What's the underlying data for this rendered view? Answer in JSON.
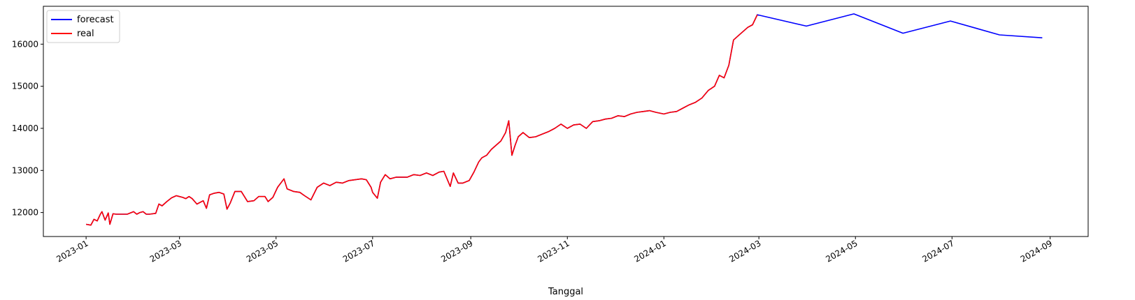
{
  "chart_data": {
    "type": "line",
    "title": "",
    "xlabel": "Tanggal",
    "ylabel": "",
    "grid": false,
    "legend_placement": "top-left",
    "xlim": [
      "2022-12-05",
      "2024-09-25"
    ],
    "ylim": [
      11430,
      16900
    ],
    "x_ticks": [
      "2023-01-01",
      "2023-03-01",
      "2023-05-01",
      "2023-07-01",
      "2023-09-01",
      "2023-11-01",
      "2024-01-01",
      "2024-03-01",
      "2024-05-01",
      "2024-07-01",
      "2024-09-01"
    ],
    "y_ticks": [
      12000,
      13000,
      14000,
      15000,
      16000
    ],
    "series": [
      {
        "name": "forecast",
        "color": "#0000ff",
        "points": [
          [
            "2023-01-01",
            11720
          ],
          [
            "2023-01-04",
            11700
          ],
          [
            "2023-01-06",
            11840
          ],
          [
            "2023-01-08",
            11800
          ],
          [
            "2023-01-10",
            11960
          ],
          [
            "2023-01-11",
            12020
          ],
          [
            "2023-01-13",
            11820
          ],
          [
            "2023-01-15",
            11990
          ],
          [
            "2023-01-16",
            11720
          ],
          [
            "2023-01-18",
            11970
          ],
          [
            "2023-01-20",
            11960
          ],
          [
            "2023-01-23",
            11960
          ],
          [
            "2023-01-27",
            11960
          ],
          [
            "2023-01-31",
            12020
          ],
          [
            "2023-02-02",
            11960
          ],
          [
            "2023-02-04",
            12000
          ],
          [
            "2023-02-06",
            12020
          ],
          [
            "2023-02-08",
            11960
          ],
          [
            "2023-02-10",
            11960
          ],
          [
            "2023-02-14",
            11980
          ],
          [
            "2023-02-16",
            12200
          ],
          [
            "2023-02-18",
            12160
          ],
          [
            "2023-02-21",
            12260
          ],
          [
            "2023-02-24",
            12350
          ],
          [
            "2023-02-27",
            12400
          ],
          [
            "2023-03-03",
            12360
          ],
          [
            "2023-03-05",
            12330
          ],
          [
            "2023-03-07",
            12380
          ],
          [
            "2023-03-09",
            12330
          ],
          [
            "2023-03-12",
            12200
          ],
          [
            "2023-03-16",
            12280
          ],
          [
            "2023-03-18",
            12100
          ],
          [
            "2023-03-20",
            12420
          ],
          [
            "2023-03-23",
            12460
          ],
          [
            "2023-03-26",
            12480
          ],
          [
            "2023-03-29",
            12440
          ],
          [
            "2023-03-31",
            12080
          ],
          [
            "2023-04-02",
            12220
          ],
          [
            "2023-04-05",
            12500
          ],
          [
            "2023-04-09",
            12500
          ],
          [
            "2023-04-13",
            12260
          ],
          [
            "2023-04-17",
            12280
          ],
          [
            "2023-04-20",
            12380
          ],
          [
            "2023-04-24",
            12380
          ],
          [
            "2023-04-26",
            12260
          ],
          [
            "2023-04-29",
            12360
          ],
          [
            "2023-05-02",
            12600
          ],
          [
            "2023-05-06",
            12800
          ],
          [
            "2023-05-08",
            12560
          ],
          [
            "2023-05-12",
            12500
          ],
          [
            "2023-05-16",
            12480
          ],
          [
            "2023-05-19",
            12400
          ],
          [
            "2023-05-23",
            12300
          ],
          [
            "2023-05-27",
            12600
          ],
          [
            "2023-05-31",
            12700
          ],
          [
            "2023-06-04",
            12640
          ],
          [
            "2023-06-08",
            12720
          ],
          [
            "2023-06-12",
            12700
          ],
          [
            "2023-06-16",
            12760
          ],
          [
            "2023-06-20",
            12780
          ],
          [
            "2023-06-24",
            12800
          ],
          [
            "2023-06-27",
            12780
          ],
          [
            "2023-06-30",
            12600
          ],
          [
            "2023-07-01",
            12480
          ],
          [
            "2023-07-04",
            12340
          ],
          [
            "2023-07-06",
            12720
          ],
          [
            "2023-07-09",
            12900
          ],
          [
            "2023-07-12",
            12800
          ],
          [
            "2023-07-16",
            12840
          ],
          [
            "2023-07-20",
            12840
          ],
          [
            "2023-07-23",
            12840
          ],
          [
            "2023-07-27",
            12900
          ],
          [
            "2023-07-31",
            12880
          ],
          [
            "2023-08-04",
            12940
          ],
          [
            "2023-08-08",
            12880
          ],
          [
            "2023-08-12",
            12960
          ],
          [
            "2023-08-15",
            12980
          ],
          [
            "2023-08-19",
            12620
          ],
          [
            "2023-08-21",
            12940
          ],
          [
            "2023-08-24",
            12700
          ],
          [
            "2023-08-27",
            12700
          ],
          [
            "2023-08-31",
            12760
          ],
          [
            "2023-09-03",
            12960
          ],
          [
            "2023-09-06",
            13200
          ],
          [
            "2023-09-08",
            13300
          ],
          [
            "2023-09-11",
            13360
          ],
          [
            "2023-09-14",
            13500
          ],
          [
            "2023-09-17",
            13600
          ],
          [
            "2023-09-20",
            13700
          ],
          [
            "2023-09-23",
            13900
          ],
          [
            "2023-09-25",
            14180
          ],
          [
            "2023-09-27",
            13360
          ],
          [
            "2023-09-29",
            13600
          ],
          [
            "2023-10-01",
            13800
          ],
          [
            "2023-10-04",
            13900
          ],
          [
            "2023-10-08",
            13780
          ],
          [
            "2023-10-12",
            13800
          ],
          [
            "2023-10-16",
            13860
          ],
          [
            "2023-10-20",
            13920
          ],
          [
            "2023-10-24",
            14000
          ],
          [
            "2023-10-28",
            14100
          ],
          [
            "2023-11-01",
            14000
          ],
          [
            "2023-11-05",
            14080
          ],
          [
            "2023-11-09",
            14100
          ],
          [
            "2023-11-13",
            14000
          ],
          [
            "2023-11-17",
            14160
          ],
          [
            "2023-11-21",
            14180
          ],
          [
            "2023-11-25",
            14220
          ],
          [
            "2023-11-29",
            14240
          ],
          [
            "2023-12-03",
            14300
          ],
          [
            "2023-12-07",
            14280
          ],
          [
            "2023-12-11",
            14340
          ],
          [
            "2023-12-15",
            14380
          ],
          [
            "2023-12-19",
            14400
          ],
          [
            "2023-12-23",
            14420
          ],
          [
            "2023-12-27",
            14380
          ],
          [
            "2024-01-01",
            14340
          ],
          [
            "2024-01-05",
            14380
          ],
          [
            "2024-01-09",
            14400
          ],
          [
            "2024-01-13",
            14480
          ],
          [
            "2024-01-17",
            14560
          ],
          [
            "2024-01-21",
            14620
          ],
          [
            "2024-01-25",
            14720
          ],
          [
            "2024-01-29",
            14900
          ],
          [
            "2024-02-02",
            15000
          ],
          [
            "2024-02-05",
            15260
          ],
          [
            "2024-02-08",
            15200
          ],
          [
            "2024-02-11",
            15500
          ],
          [
            "2024-02-14",
            16100
          ],
          [
            "2024-02-17",
            16200
          ],
          [
            "2024-02-20",
            16300
          ],
          [
            "2024-02-23",
            16400
          ],
          [
            "2024-02-26",
            16460
          ],
          [
            "2024-02-29",
            16700
          ],
          [
            "2024-03-31",
            16430
          ],
          [
            "2024-04-30",
            16720
          ],
          [
            "2024-05-31",
            16260
          ],
          [
            "2024-06-30",
            16550
          ],
          [
            "2024-07-31",
            16220
          ],
          [
            "2024-08-27",
            16150
          ]
        ]
      },
      {
        "name": "real",
        "color": "#ff0000",
        "points": [
          [
            "2023-01-01",
            11720
          ],
          [
            "2023-01-04",
            11700
          ],
          [
            "2023-01-06",
            11840
          ],
          [
            "2023-01-08",
            11800
          ],
          [
            "2023-01-10",
            11960
          ],
          [
            "2023-01-11",
            12020
          ],
          [
            "2023-01-13",
            11820
          ],
          [
            "2023-01-15",
            11990
          ],
          [
            "2023-01-16",
            11720
          ],
          [
            "2023-01-18",
            11970
          ],
          [
            "2023-01-20",
            11960
          ],
          [
            "2023-01-23",
            11960
          ],
          [
            "2023-01-27",
            11960
          ],
          [
            "2023-01-31",
            12020
          ],
          [
            "2023-02-02",
            11960
          ],
          [
            "2023-02-04",
            12000
          ],
          [
            "2023-02-06",
            12020
          ],
          [
            "2023-02-08",
            11960
          ],
          [
            "2023-02-10",
            11960
          ],
          [
            "2023-02-14",
            11980
          ],
          [
            "2023-02-16",
            12200
          ],
          [
            "2023-02-18",
            12160
          ],
          [
            "2023-02-21",
            12260
          ],
          [
            "2023-02-24",
            12350
          ],
          [
            "2023-02-27",
            12400
          ],
          [
            "2023-03-03",
            12360
          ],
          [
            "2023-03-05",
            12330
          ],
          [
            "2023-03-07",
            12380
          ],
          [
            "2023-03-09",
            12330
          ],
          [
            "2023-03-12",
            12200
          ],
          [
            "2023-03-16",
            12280
          ],
          [
            "2023-03-18",
            12100
          ],
          [
            "2023-03-20",
            12420
          ],
          [
            "2023-03-23",
            12460
          ],
          [
            "2023-03-26",
            12480
          ],
          [
            "2023-03-29",
            12440
          ],
          [
            "2023-03-31",
            12080
          ],
          [
            "2023-04-02",
            12220
          ],
          [
            "2023-04-05",
            12500
          ],
          [
            "2023-04-09",
            12500
          ],
          [
            "2023-04-13",
            12260
          ],
          [
            "2023-04-17",
            12280
          ],
          [
            "2023-04-20",
            12380
          ],
          [
            "2023-04-24",
            12380
          ],
          [
            "2023-04-26",
            12260
          ],
          [
            "2023-04-29",
            12360
          ],
          [
            "2023-05-02",
            12600
          ],
          [
            "2023-05-06",
            12800
          ],
          [
            "2023-05-08",
            12560
          ],
          [
            "2023-05-12",
            12500
          ],
          [
            "2023-05-16",
            12480
          ],
          [
            "2023-05-19",
            12400
          ],
          [
            "2023-05-23",
            12300
          ],
          [
            "2023-05-27",
            12600
          ],
          [
            "2023-05-31",
            12700
          ],
          [
            "2023-06-04",
            12640
          ],
          [
            "2023-06-08",
            12720
          ],
          [
            "2023-06-12",
            12700
          ],
          [
            "2023-06-16",
            12760
          ],
          [
            "2023-06-20",
            12780
          ],
          [
            "2023-06-24",
            12800
          ],
          [
            "2023-06-27",
            12780
          ],
          [
            "2023-06-30",
            12600
          ],
          [
            "2023-07-01",
            12480
          ],
          [
            "2023-07-04",
            12340
          ],
          [
            "2023-07-06",
            12720
          ],
          [
            "2023-07-09",
            12900
          ],
          [
            "2023-07-12",
            12800
          ],
          [
            "2023-07-16",
            12840
          ],
          [
            "2023-07-20",
            12840
          ],
          [
            "2023-07-23",
            12840
          ],
          [
            "2023-07-27",
            12900
          ],
          [
            "2023-07-31",
            12880
          ],
          [
            "2023-08-04",
            12940
          ],
          [
            "2023-08-08",
            12880
          ],
          [
            "2023-08-12",
            12960
          ],
          [
            "2023-08-15",
            12980
          ],
          [
            "2023-08-19",
            12620
          ],
          [
            "2023-08-21",
            12940
          ],
          [
            "2023-08-24",
            12700
          ],
          [
            "2023-08-27",
            12700
          ],
          [
            "2023-08-31",
            12760
          ],
          [
            "2023-09-03",
            12960
          ],
          [
            "2023-09-06",
            13200
          ],
          [
            "2023-09-08",
            13300
          ],
          [
            "2023-09-11",
            13360
          ],
          [
            "2023-09-14",
            13500
          ],
          [
            "2023-09-17",
            13600
          ],
          [
            "2023-09-20",
            13700
          ],
          [
            "2023-09-23",
            13900
          ],
          [
            "2023-09-25",
            14180
          ],
          [
            "2023-09-27",
            13360
          ],
          [
            "2023-09-29",
            13600
          ],
          [
            "2023-10-01",
            13800
          ],
          [
            "2023-10-04",
            13900
          ],
          [
            "2023-10-08",
            13780
          ],
          [
            "2023-10-12",
            13800
          ],
          [
            "2023-10-16",
            13860
          ],
          [
            "2023-10-20",
            13920
          ],
          [
            "2023-10-24",
            14000
          ],
          [
            "2023-10-28",
            14100
          ],
          [
            "2023-11-01",
            14000
          ],
          [
            "2023-11-05",
            14080
          ],
          [
            "2023-11-09",
            14100
          ],
          [
            "2023-11-13",
            14000
          ],
          [
            "2023-11-17",
            14160
          ],
          [
            "2023-11-21",
            14180
          ],
          [
            "2023-11-25",
            14220
          ],
          [
            "2023-11-29",
            14240
          ],
          [
            "2023-12-03",
            14300
          ],
          [
            "2023-12-07",
            14280
          ],
          [
            "2023-12-11",
            14340
          ],
          [
            "2023-12-15",
            14380
          ],
          [
            "2023-12-19",
            14400
          ],
          [
            "2023-12-23",
            14420
          ],
          [
            "2023-12-27",
            14380
          ],
          [
            "2024-01-01",
            14340
          ],
          [
            "2024-01-05",
            14380
          ],
          [
            "2024-01-09",
            14400
          ],
          [
            "2024-01-13",
            14480
          ],
          [
            "2024-01-17",
            14560
          ],
          [
            "2024-01-21",
            14620
          ],
          [
            "2024-01-25",
            14720
          ],
          [
            "2024-01-29",
            14900
          ],
          [
            "2024-02-02",
            15000
          ],
          [
            "2024-02-05",
            15260
          ],
          [
            "2024-02-08",
            15200
          ],
          [
            "2024-02-11",
            15500
          ],
          [
            "2024-02-14",
            16100
          ],
          [
            "2024-02-17",
            16200
          ],
          [
            "2024-02-20",
            16300
          ],
          [
            "2024-02-23",
            16400
          ],
          [
            "2024-02-26",
            16460
          ],
          [
            "2024-02-29",
            16700
          ]
        ]
      }
    ]
  }
}
